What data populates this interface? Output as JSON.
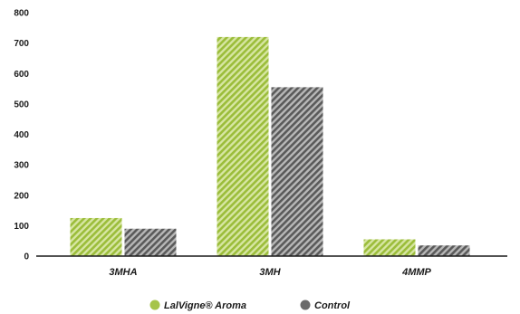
{
  "chart_data": {
    "type": "bar",
    "categories": [
      "3MHA",
      "3MH",
      "4MMP"
    ],
    "series": [
      {
        "name": "LalVigne® Aroma",
        "values": [
          125,
          720,
          55
        ],
        "color": "#a6c44a",
        "pattern": "diagonal-stripes"
      },
      {
        "name": "Control",
        "values": [
          90,
          555,
          35
        ],
        "color": "#6b6b6b",
        "pattern": "diagonal-stripes"
      }
    ],
    "yticks": [
      "0",
      "100",
      "200",
      "300",
      "400",
      "500",
      "600",
      "700",
      "800"
    ],
    "ylim": [
      0,
      800
    ],
    "grid": false,
    "legend_position": "bottom-center"
  }
}
